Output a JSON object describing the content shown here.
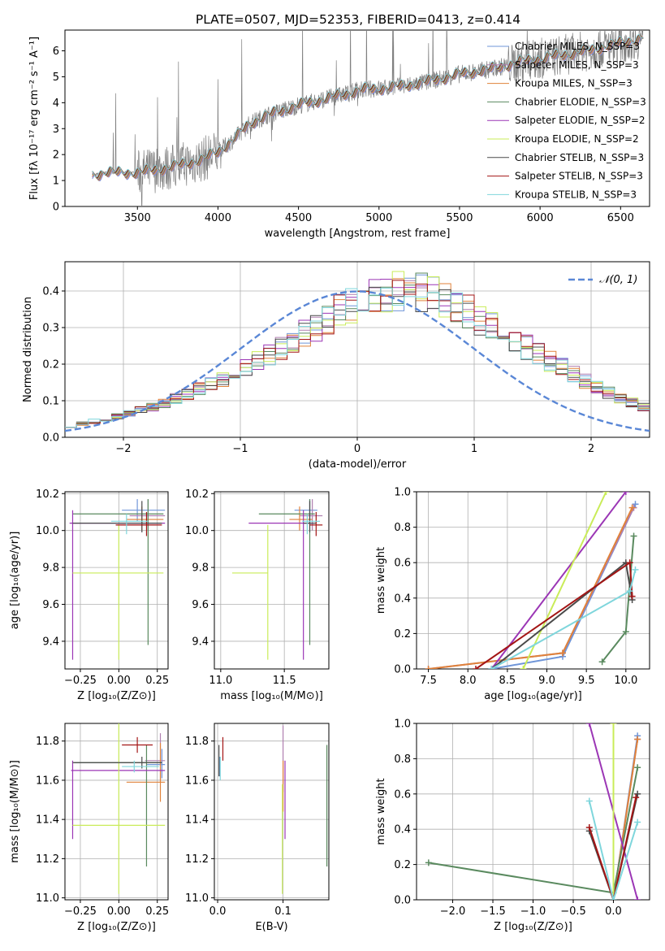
{
  "figure_title": "PLATE=0507, MJD=52353, FIBERID=0413, z=0.414",
  "colors": {
    "chabrier_miles": "#6f95d8",
    "salpeter_miles": "#b07fb0",
    "kroupa_miles": "#e0823a",
    "chabrier_elodie": "#5a8a5f",
    "salpeter_elodie": "#9b36b5",
    "kroupa_elodie": "#c9ec58",
    "chabrier_stelib": "#4a4a4a",
    "salpeter_stelib": "#a31515",
    "kroupa_stelib": "#7fd6dc",
    "data": "#808080",
    "gauss": "#5a87d6"
  },
  "chart_data": [
    {
      "id": "spectrum",
      "type": "line",
      "xlabel": "wavelength [Angstrom, rest frame]",
      "ylabel": "Flux [fλ 10⁻¹⁷ erg cm⁻² s⁻¹ A⁻¹]",
      "xlim": [
        3050,
        6680
      ],
      "ylim": [
        0,
        6.8
      ],
      "xticks": [
        "3500",
        "4000",
        "4500",
        "5000",
        "5500",
        "6000",
        "6500"
      ],
      "yticks": [
        "0",
        "1",
        "2",
        "3",
        "4",
        "5",
        "6"
      ],
      "legend": [
        "Chabrier MILES, N_SSP=3",
        "Salpeter MILES, N_SSP=3",
        "Kroupa MILES, N_SSP=3",
        "Chabrier ELODIE, N_SSP=3",
        "Salpeter ELODIE, N_SSP=2",
        "Kroupa ELODIE, N_SSP=2",
        "Chabrier STELIB, N_SSP=3",
        "Salpeter STELIB, N_SSP=3",
        "Kroupa STELIB, N_SSP=3"
      ],
      "continuum_x": [
        3220,
        3300,
        3500,
        3700,
        3900,
        4000,
        4100,
        4200,
        4300,
        4500,
        4700,
        4900,
        5100,
        5300,
        5500,
        5700,
        5900,
        6100,
        6300,
        6500,
        6640
      ],
      "continuum_y": [
        1.2,
        1.3,
        1.3,
        1.5,
        1.8,
        2.1,
        2.6,
        3.2,
        3.5,
        3.9,
        4.2,
        4.5,
        4.6,
        4.8,
        5.1,
        5.3,
        5.6,
        5.8,
        6.0,
        6.3,
        6.5
      ]
    },
    {
      "id": "residuals",
      "type": "histogram",
      "xlabel": "(data-model)/error",
      "ylabel": "Normed distribution",
      "xlim": [
        -2.5,
        2.5
      ],
      "ylim": [
        0,
        0.48
      ],
      "xticks": [
        "−2",
        "−1",
        "0",
        "1",
        "2"
      ],
      "yticks": [
        "0.0",
        "0.1",
        "0.2",
        "0.3",
        "0.4"
      ],
      "bin_edges_range": [
        -2.5,
        2.5
      ],
      "n_bins": 50,
      "gauss_legend": "𝒩(0, 1)",
      "base_density": [
        0.032,
        0.038,
        0.044,
        0.05,
        0.057,
        0.065,
        0.074,
        0.083,
        0.094,
        0.105,
        0.118,
        0.131,
        0.145,
        0.159,
        0.175,
        0.191,
        0.208,
        0.226,
        0.245,
        0.265,
        0.284,
        0.305,
        0.325,
        0.345,
        0.363,
        0.378,
        0.388,
        0.396,
        0.4,
        0.399,
        0.395,
        0.386,
        0.375,
        0.36,
        0.342,
        0.323,
        0.304,
        0.285,
        0.266,
        0.247,
        0.228,
        0.209,
        0.19,
        0.172,
        0.155,
        0.139,
        0.123,
        0.108,
        0.094,
        0.082
      ]
    },
    {
      "id": "age_vs_Z",
      "type": "errorbar",
      "xlabel": "Z [log₁₀(Z/Z⊙)]",
      "ylabel": "age  [log₁₀(age/yr)]",
      "xlim": [
        -0.35,
        0.32
      ],
      "ylim": [
        9.25,
        10.21
      ],
      "xticks": [
        "−0.25",
        "0.00",
        "0.25"
      ],
      "yticks": [
        "9.4",
        "9.6",
        "9.8",
        "10.0",
        "10.2"
      ],
      "points": [
        {
          "model": "chabrier_miles",
          "x": 0.12,
          "xerr": [
            0.1,
            0.18
          ],
          "y": 10.11,
          "yerr": [
            0.06,
            0.06
          ]
        },
        {
          "model": "salpeter_miles",
          "x": 0.19,
          "xerr": [
            0.12,
            0.11
          ],
          "y": 10.08,
          "yerr": [
            0.08,
            0.09
          ]
        },
        {
          "model": "kroupa_miles",
          "x": 0.15,
          "xerr": [
            0.1,
            0.14
          ],
          "y": 10.06,
          "yerr": [
            0.06,
            0.07
          ]
        },
        {
          "model": "chabrier_elodie",
          "x": 0.19,
          "xerr": [
            0.49,
            0.1
          ],
          "y": 10.09,
          "yerr": [
            0.71,
            0.08
          ]
        },
        {
          "model": "salpeter_elodie",
          "x": -0.3,
          "xerr": [
            0.02,
            0.6
          ],
          "y": 10.04,
          "yerr": [
            0.74,
            0.07
          ]
        },
        {
          "model": "kroupa_elodie",
          "x": 0.0,
          "xerr": [
            0.3,
            0.29
          ],
          "y": 9.77,
          "yerr": [
            0.47,
            0.26
          ]
        },
        {
          "model": "chabrier_stelib",
          "x": 0.15,
          "xerr": [
            0.45,
            0.13
          ],
          "y": 10.04,
          "yerr": [
            0.05,
            0.12
          ]
        },
        {
          "model": "salpeter_stelib",
          "x": 0.18,
          "xerr": [
            0.2,
            0.1
          ],
          "y": 10.03,
          "yerr": [
            0.06,
            0.07
          ]
        },
        {
          "model": "kroupa_stelib",
          "x": 0.05,
          "xerr": [
            0.1,
            0.14
          ],
          "y": 10.05,
          "yerr": [
            0.07,
            0.04
          ]
        }
      ]
    },
    {
      "id": "age_vs_mass",
      "type": "errorbar",
      "xlabel": "mass [log₁₀(M/M⊙)]",
      "ylabel": "",
      "xlim": [
        10.95,
        11.85
      ],
      "ylim": [
        9.25,
        10.21
      ],
      "xticks": [
        "11.0",
        "11.5"
      ],
      "yticks": [
        "9.4",
        "9.6",
        "9.8",
        "10.0",
        "10.2"
      ],
      "points": [
        {
          "model": "chabrier_miles",
          "x": 11.7,
          "xerr": [
            0.12,
            0.06
          ],
          "y": 10.11,
          "yerr": [
            0.06,
            0.06
          ]
        },
        {
          "model": "salpeter_miles",
          "x": 11.72,
          "xerr": [
            0.1,
            0.08
          ],
          "y": 10.08,
          "yerr": [
            0.08,
            0.09
          ]
        },
        {
          "model": "kroupa_miles",
          "x": 11.62,
          "xerr": [
            0.08,
            0.1
          ],
          "y": 10.06,
          "yerr": [
            0.06,
            0.07
          ]
        },
        {
          "model": "chabrier_elodie",
          "x": 11.7,
          "xerr": [
            0.4,
            0.04
          ],
          "y": 10.09,
          "yerr": [
            0.71,
            0.08
          ]
        },
        {
          "model": "salpeter_elodie",
          "x": 11.65,
          "xerr": [
            0.43,
            0.08
          ],
          "y": 10.04,
          "yerr": [
            0.74,
            0.07
          ]
        },
        {
          "model": "kroupa_elodie",
          "x": 11.37,
          "xerr": [
            0.28,
            0.0
          ],
          "y": 9.77,
          "yerr": [
            0.47,
            0.26
          ]
        },
        {
          "model": "chabrier_stelib",
          "x": 11.7,
          "xerr": [
            0.05,
            0.05
          ],
          "y": 10.04,
          "yerr": [
            0.05,
            0.12
          ]
        },
        {
          "model": "salpeter_stelib",
          "x": 11.75,
          "xerr": [
            0.05,
            0.05
          ],
          "y": 10.03,
          "yerr": [
            0.06,
            0.07
          ]
        },
        {
          "model": "kroupa_stelib",
          "x": 11.68,
          "xerr": [
            0.04,
            0.1
          ],
          "y": 10.05,
          "yerr": [
            0.07,
            0.04
          ]
        }
      ]
    },
    {
      "id": "weight_vs_age",
      "type": "line",
      "xlabel": "age  [log₁₀(age/yr)]",
      "ylabel": "mass weight",
      "xlim": [
        7.35,
        10.3
      ],
      "ylim": [
        0,
        1
      ],
      "xticks": [
        "7.5",
        "8.0",
        "8.5",
        "9.0",
        "9.5",
        "10.0"
      ],
      "yticks": [
        "0.0",
        "0.2",
        "0.4",
        "0.6",
        "0.8",
        "1.0"
      ],
      "series": [
        {
          "model": "chabrier_miles",
          "x": [
            8.3,
            9.2,
            10.12
          ],
          "y": [
            0.0,
            0.07,
            0.93
          ]
        },
        {
          "model": "salpeter_miles",
          "x": [
            7.5,
            9.2,
            10.1
          ],
          "y": [
            0.0,
            0.09,
            0.91
          ]
        },
        {
          "model": "kroupa_miles",
          "x": [
            7.5,
            9.2,
            10.08
          ],
          "y": [
            0.0,
            0.09,
            0.91
          ]
        },
        {
          "model": "chabrier_elodie",
          "x": [
            9.7,
            10.0,
            10.1
          ],
          "y": [
            0.04,
            0.21,
            0.75
          ]
        },
        {
          "model": "salpeter_elodie",
          "x": [
            8.3,
            10.0
          ],
          "y": [
            0.0,
            1.0
          ]
        },
        {
          "model": "kroupa_elodie",
          "x": [
            8.7,
            9.75
          ],
          "y": [
            0.0,
            1.0
          ]
        },
        {
          "model": "chabrier_stelib",
          "x": [
            8.3,
            10.0,
            10.08
          ],
          "y": [
            0.0,
            0.6,
            0.39
          ]
        },
        {
          "model": "salpeter_stelib",
          "x": [
            8.1,
            10.05,
            10.08
          ],
          "y": [
            0.0,
            0.6,
            0.41
          ]
        },
        {
          "model": "kroupa_stelib",
          "x": [
            8.3,
            10.05,
            10.12
          ],
          "y": [
            0.0,
            0.44,
            0.56
          ]
        }
      ]
    },
    {
      "id": "mass_vs_Z",
      "type": "errorbar",
      "xlabel": "Z [log₁₀(Z/Z⊙)]",
      "ylabel": "mass [log₁₀(M/M⊙)]",
      "xlim": [
        -0.35,
        0.32
      ],
      "ylim": [
        10.99,
        11.89
      ],
      "xticks": [
        "−0.25",
        "0.00",
        "0.25"
      ],
      "yticks": [
        "11.0",
        "11.2",
        "11.4",
        "11.6",
        "11.8"
      ],
      "points": [
        {
          "model": "chabrier_miles",
          "x": 0.28,
          "xerr": [
            0.1,
            0.02
          ],
          "y": 11.68,
          "yerr": [
            0.07,
            0.08
          ]
        },
        {
          "model": "salpeter_miles",
          "x": 0.27,
          "xerr": [
            0.1,
            0.03
          ],
          "y": 11.7,
          "yerr": [
            0.1,
            0.14
          ]
        },
        {
          "model": "kroupa_miles",
          "x": 0.27,
          "xerr": [
            0.22,
            0.03
          ],
          "y": 11.59,
          "yerr": [
            0.1,
            0.2
          ]
        },
        {
          "model": "chabrier_elodie",
          "x": 0.18,
          "xerr": [
            0.47,
            0.1
          ],
          "y": 11.69,
          "yerr": [
            0.53,
            0.09
          ]
        },
        {
          "model": "salpeter_elodie",
          "x": -0.3,
          "xerr": [
            0.01,
            0.6
          ],
          "y": 11.65,
          "yerr": [
            0.35,
            0.05
          ]
        },
        {
          "model": "kroupa_elodie",
          "x": 0.0,
          "xerr": [
            0.3,
            0.3
          ],
          "y": 11.37,
          "yerr": [
            0.35,
            0.53
          ]
        },
        {
          "model": "chabrier_stelib",
          "x": 0.15,
          "xerr": [
            0.45,
            0.13
          ],
          "y": 11.69,
          "yerr": [
            0.03,
            0.03
          ]
        },
        {
          "model": "salpeter_stelib",
          "x": 0.12,
          "xerr": [
            0.1,
            0.1
          ],
          "y": 11.78,
          "yerr": [
            0.04,
            0.04
          ]
        },
        {
          "model": "kroupa_stelib",
          "x": 0.1,
          "xerr": [
            0.08,
            0.16
          ],
          "y": 11.67,
          "yerr": [
            0.03,
            0.03
          ]
        }
      ]
    },
    {
      "id": "mass_vs_ebv",
      "type": "errorbar",
      "xlabel": "E(B-V)",
      "ylabel": "",
      "xlim": [
        -0.005,
        0.17
      ],
      "ylim": [
        10.99,
        11.89
      ],
      "xticks": [
        "0.0",
        "0.1"
      ],
      "yticks": [
        "11.0",
        "11.2",
        "11.4",
        "11.6",
        "11.8"
      ],
      "points": [
        {
          "model": "chabrier_miles",
          "x": 0.003,
          "y": 11.66,
          "yerr": [
            0.04,
            0.06
          ]
        },
        {
          "model": "salpeter_miles",
          "x": 0.1,
          "y": 11.7,
          "yerr": [
            0.16,
            0.18
          ]
        },
        {
          "model": "kroupa_miles",
          "x": 0.1,
          "y": 11.6,
          "yerr": [
            0.16,
            0.1
          ]
        },
        {
          "model": "chabrier_elodie",
          "x": 0.167,
          "y": 11.47,
          "yerr": [
            0.31,
            0.31
          ]
        },
        {
          "model": "salpeter_elodie",
          "x": 0.103,
          "y": 11.5,
          "yerr": [
            0.2,
            0.2
          ]
        },
        {
          "model": "kroupa_elodie",
          "x": 0.099,
          "y": 11.3,
          "yerr": [
            0.28,
            0.28
          ]
        },
        {
          "model": "chabrier_stelib",
          "x": 0.002,
          "y": 11.7,
          "yerr": [
            0.08,
            0.08
          ]
        },
        {
          "model": "salpeter_stelib",
          "x": 0.008,
          "y": 11.76,
          "yerr": [
            0.06,
            0.06
          ]
        },
        {
          "model": "kroupa_stelib",
          "x": 0.004,
          "y": 11.66,
          "yerr": [
            0.06,
            0.06
          ]
        }
      ]
    },
    {
      "id": "weight_vs_Z",
      "type": "line",
      "xlabel": "Z [log₁₀(Z/Z⊙)]",
      "ylabel": "mass weight",
      "xlim": [
        -2.45,
        0.45
      ],
      "ylim": [
        0,
        1
      ],
      "xticks": [
        "−2.0",
        "−1.5",
        "−1.0",
        "−0.5",
        "0.0"
      ],
      "yticks": [
        "0.0",
        "0.2",
        "0.4",
        "0.6",
        "0.8",
        "1.0"
      ],
      "series": [
        {
          "model": "chabrier_miles",
          "x": [
            0.0,
            0.3
          ],
          "y": [
            0.0,
            0.93
          ]
        },
        {
          "model": "salpeter_miles",
          "x": [
            0.0,
            0.3
          ],
          "y": [
            0.0,
            0.91
          ]
        },
        {
          "model": "kroupa_miles",
          "x": [
            0.0,
            0.3
          ],
          "y": [
            0.0,
            0.91
          ]
        },
        {
          "model": "chabrier_elodie",
          "x": [
            -2.3,
            0.0,
            0.3
          ],
          "y": [
            0.21,
            0.04,
            0.75
          ]
        },
        {
          "model": "salpeter_elodie",
          "x": [
            -0.3,
            0.3
          ],
          "y": [
            1.0,
            0.0
          ]
        },
        {
          "model": "kroupa_elodie",
          "x": [
            0.0,
            0.0
          ],
          "y": [
            0.0,
            1.0
          ]
        },
        {
          "model": "chabrier_stelib",
          "x": [
            -0.3,
            0.0,
            0.3
          ],
          "y": [
            0.39,
            0.0,
            0.6
          ]
        },
        {
          "model": "salpeter_stelib",
          "x": [
            -0.3,
            0.0,
            0.28
          ],
          "y": [
            0.41,
            0.0,
            0.58
          ]
        },
        {
          "model": "kroupa_stelib",
          "x": [
            -0.3,
            0.0,
            0.3
          ],
          "y": [
            0.56,
            0.0,
            0.44
          ]
        }
      ]
    }
  ]
}
